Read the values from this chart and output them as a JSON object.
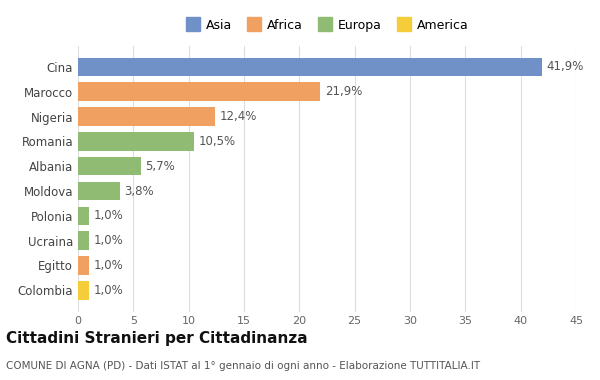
{
  "categories": [
    "Colombia",
    "Egitto",
    "Ucraina",
    "Polonia",
    "Moldova",
    "Albania",
    "Romania",
    "Nigeria",
    "Marocco",
    "Cina"
  ],
  "values": [
    1.0,
    1.0,
    1.0,
    1.0,
    3.8,
    5.7,
    10.5,
    12.4,
    21.9,
    41.9
  ],
  "labels": [
    "1,0%",
    "1,0%",
    "1,0%",
    "1,0%",
    "3,8%",
    "5,7%",
    "10,5%",
    "12,4%",
    "21,9%",
    "41,9%"
  ],
  "colors": [
    "#f5cc3a",
    "#f0a060",
    "#8fbb72",
    "#8fbb72",
    "#8fbb72",
    "#8fbb72",
    "#8fbb72",
    "#f0a060",
    "#f0a060",
    "#7090c8"
  ],
  "legend_labels": [
    "Asia",
    "Africa",
    "Europa",
    "America"
  ],
  "legend_colors": [
    "#7090c8",
    "#f0a060",
    "#8fbb72",
    "#f5cc3a"
  ],
  "title": "Cittadini Stranieri per Cittadinanza",
  "subtitle": "COMUNE DI AGNA (PD) - Dati ISTAT al 1° gennaio di ogni anno - Elaborazione TUTTITALIA.IT",
  "xlim": [
    0,
    45
  ],
  "xticks": [
    0,
    5,
    10,
    15,
    20,
    25,
    30,
    35,
    40,
    45
  ],
  "background_color": "#ffffff",
  "grid_color": "#dddddd",
  "label_fontsize": 8.5,
  "tick_fontsize": 8,
  "ylabel_fontsize": 8.5,
  "title_fontsize": 11,
  "subtitle_fontsize": 7.5
}
